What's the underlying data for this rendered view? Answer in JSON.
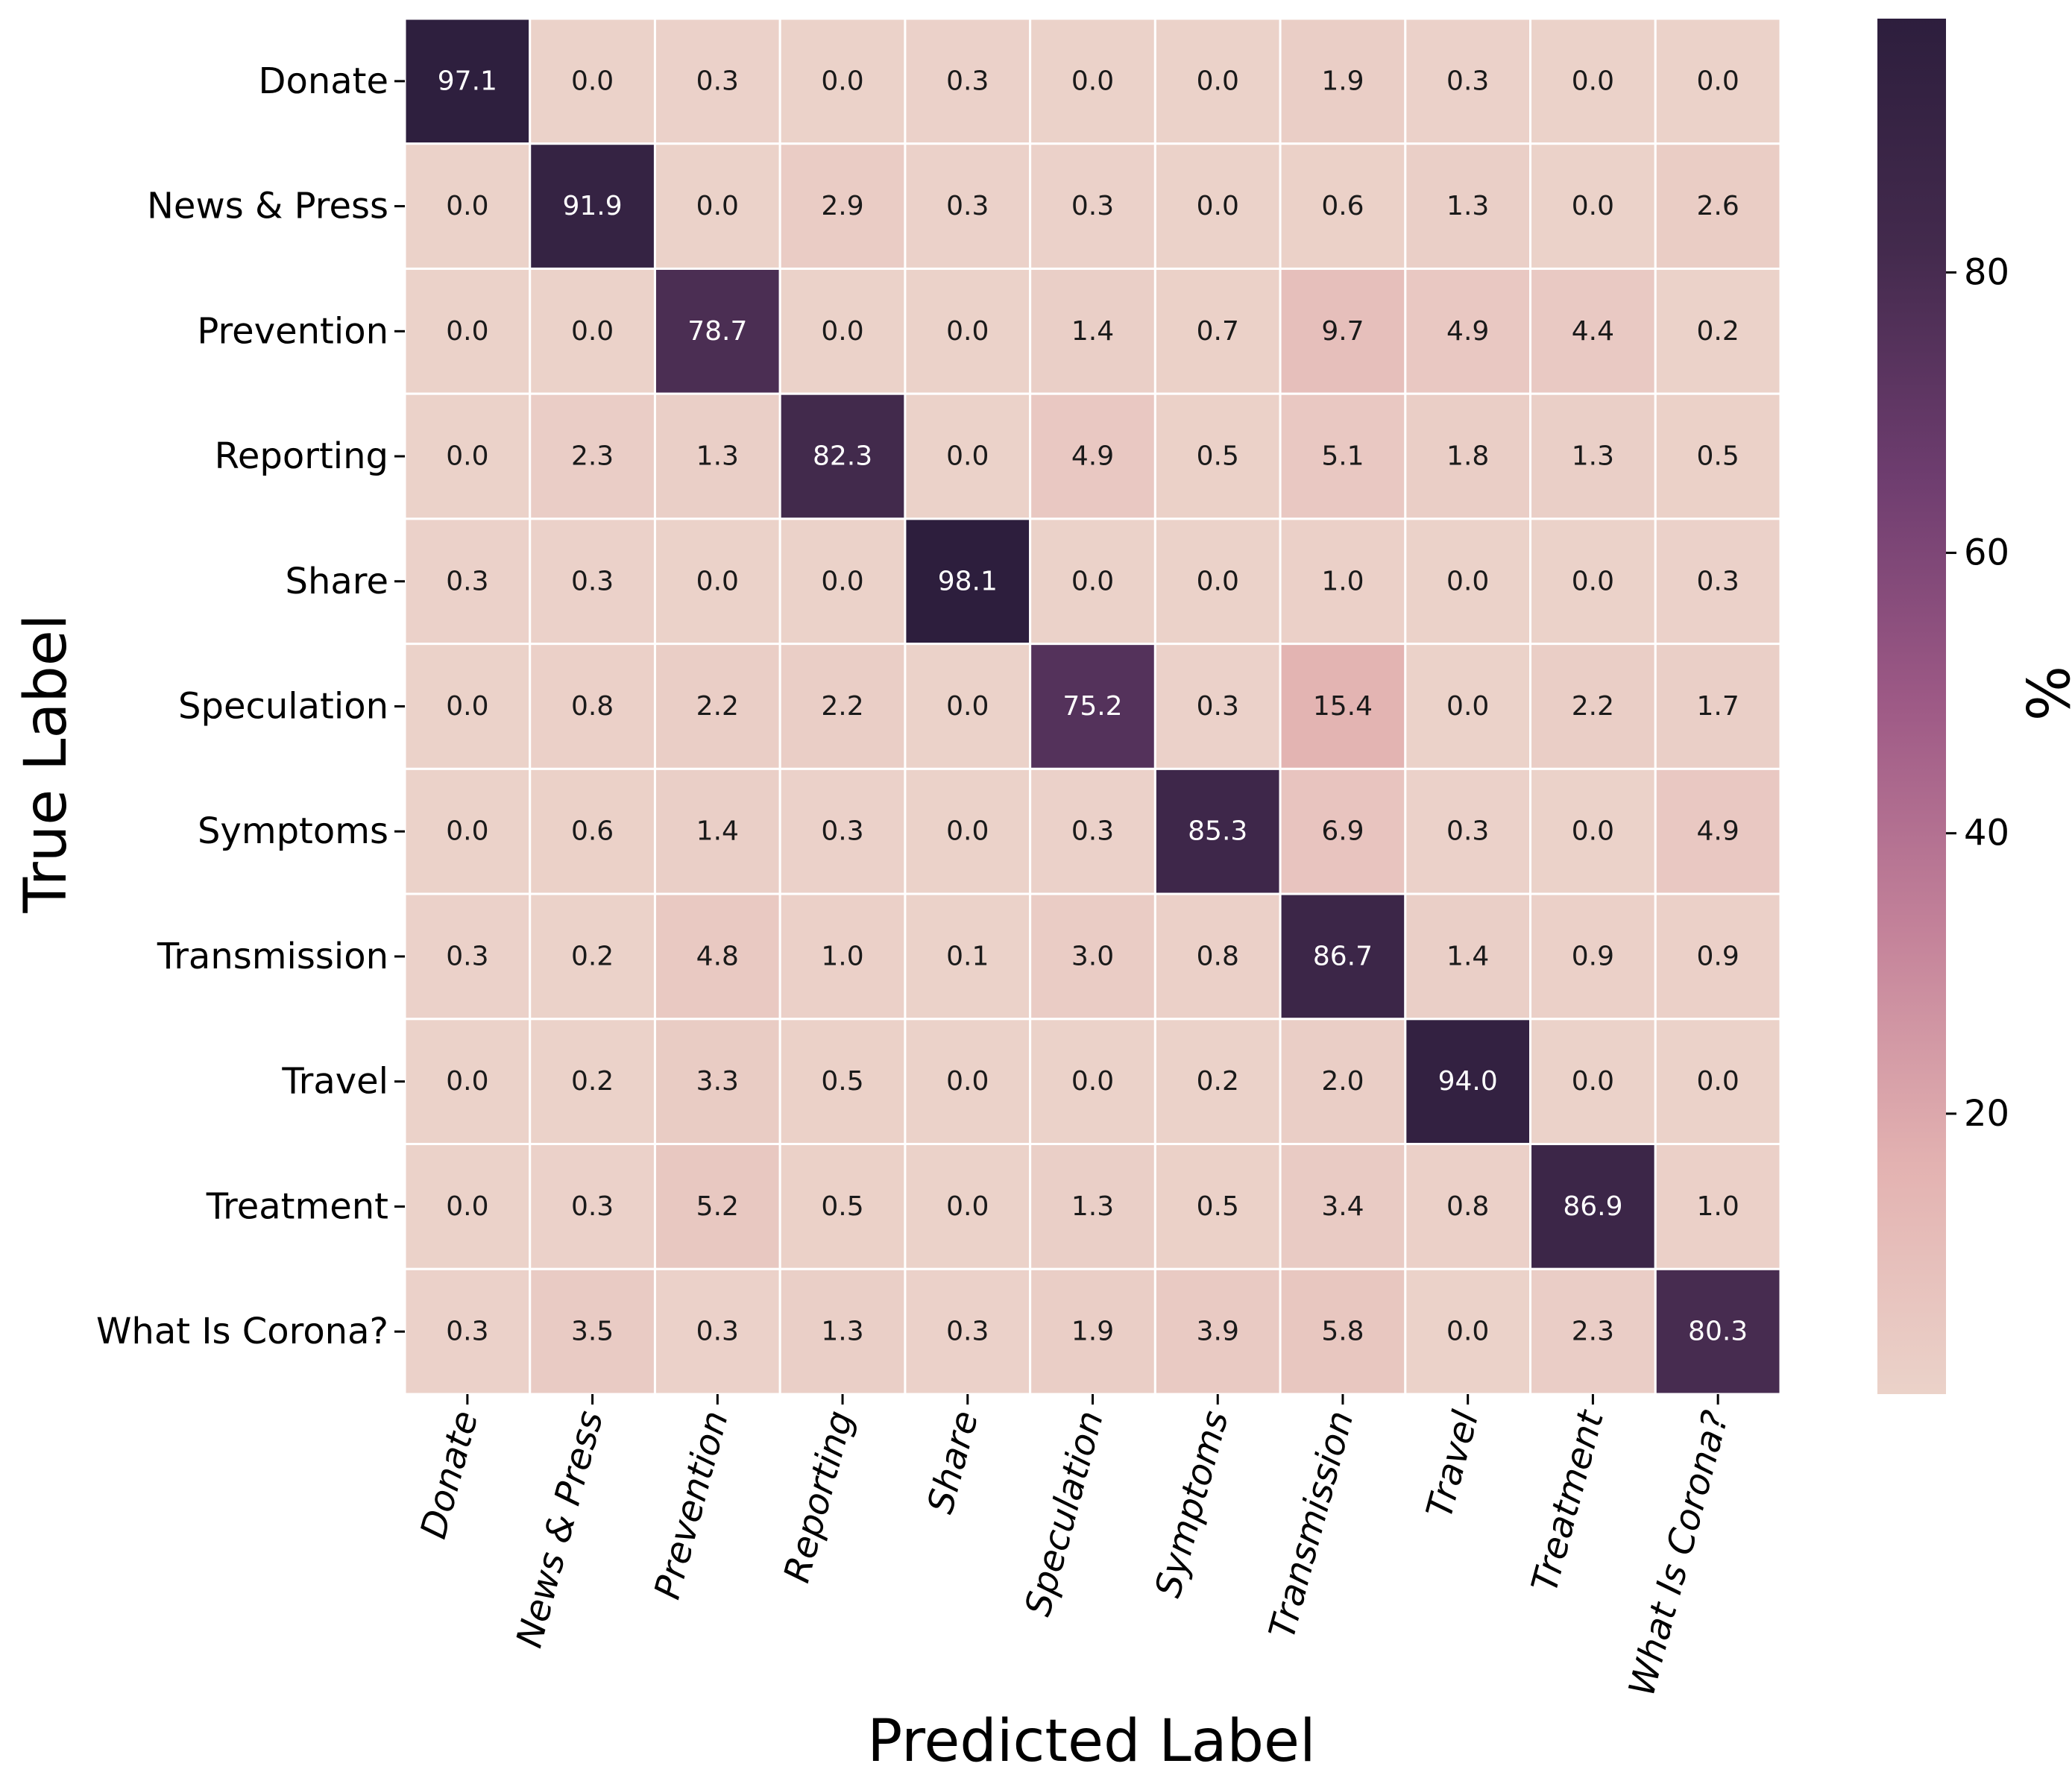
{
  "chart_data": {
    "type": "heatmap",
    "title": "",
    "xlabel": "Predicted Label",
    "ylabel": "True Label",
    "colorbar_label": "%",
    "colorbar_ticks": [
      20,
      40,
      60,
      80
    ],
    "colorbar_range": [
      0,
      98.1
    ],
    "x_categories": [
      "Donate",
      "News & Press",
      "Prevention",
      "Reporting",
      "Share",
      "Speculation",
      "Symptoms",
      "Transmission",
      "Travel",
      "Treatment",
      "What Is Corona?"
    ],
    "y_categories": [
      "Donate",
      "News & Press",
      "Prevention",
      "Reporting",
      "Share",
      "Speculation",
      "Symptoms",
      "Transmission",
      "Travel",
      "Treatment",
      "What Is Corona?"
    ],
    "values": [
      [
        97.1,
        0.0,
        0.3,
        0.0,
        0.3,
        0.0,
        0.0,
        1.9,
        0.3,
        0.0,
        0.0
      ],
      [
        0.0,
        91.9,
        0.0,
        2.9,
        0.3,
        0.3,
        0.0,
        0.6,
        1.3,
        0.0,
        2.6
      ],
      [
        0.0,
        0.0,
        78.7,
        0.0,
        0.0,
        1.4,
        0.7,
        9.7,
        4.9,
        4.4,
        0.2
      ],
      [
        0.0,
        2.3,
        1.3,
        82.3,
        0.0,
        4.9,
        0.5,
        5.1,
        1.8,
        1.3,
        0.5
      ],
      [
        0.3,
        0.3,
        0.0,
        0.0,
        98.1,
        0.0,
        0.0,
        1.0,
        0.0,
        0.0,
        0.3
      ],
      [
        0.0,
        0.8,
        2.2,
        2.2,
        0.0,
        75.2,
        0.3,
        15.4,
        0.0,
        2.2,
        1.7
      ],
      [
        0.0,
        0.6,
        1.4,
        0.3,
        0.0,
        0.3,
        85.3,
        6.9,
        0.3,
        0.0,
        4.9
      ],
      [
        0.3,
        0.2,
        4.8,
        1.0,
        0.1,
        3.0,
        0.8,
        86.7,
        1.4,
        0.9,
        0.9
      ],
      [
        0.0,
        0.2,
        3.3,
        0.5,
        0.0,
        0.0,
        0.2,
        2.0,
        94.0,
        0.0,
        0.0
      ],
      [
        0.0,
        0.3,
        5.2,
        0.5,
        0.0,
        1.3,
        0.5,
        3.4,
        0.8,
        86.9,
        1.0
      ],
      [
        0.3,
        3.5,
        0.3,
        1.3,
        0.3,
        1.9,
        3.9,
        5.8,
        0.0,
        2.3,
        80.3
      ]
    ],
    "colormap": [
      "#ebd2c9",
      "#e3b2b1",
      "#c4839a",
      "#9e5a86",
      "#6e3d6f",
      "#432a4d",
      "#2d1e3d"
    ],
    "grid": false,
    "legend": "colorbar-right"
  }
}
